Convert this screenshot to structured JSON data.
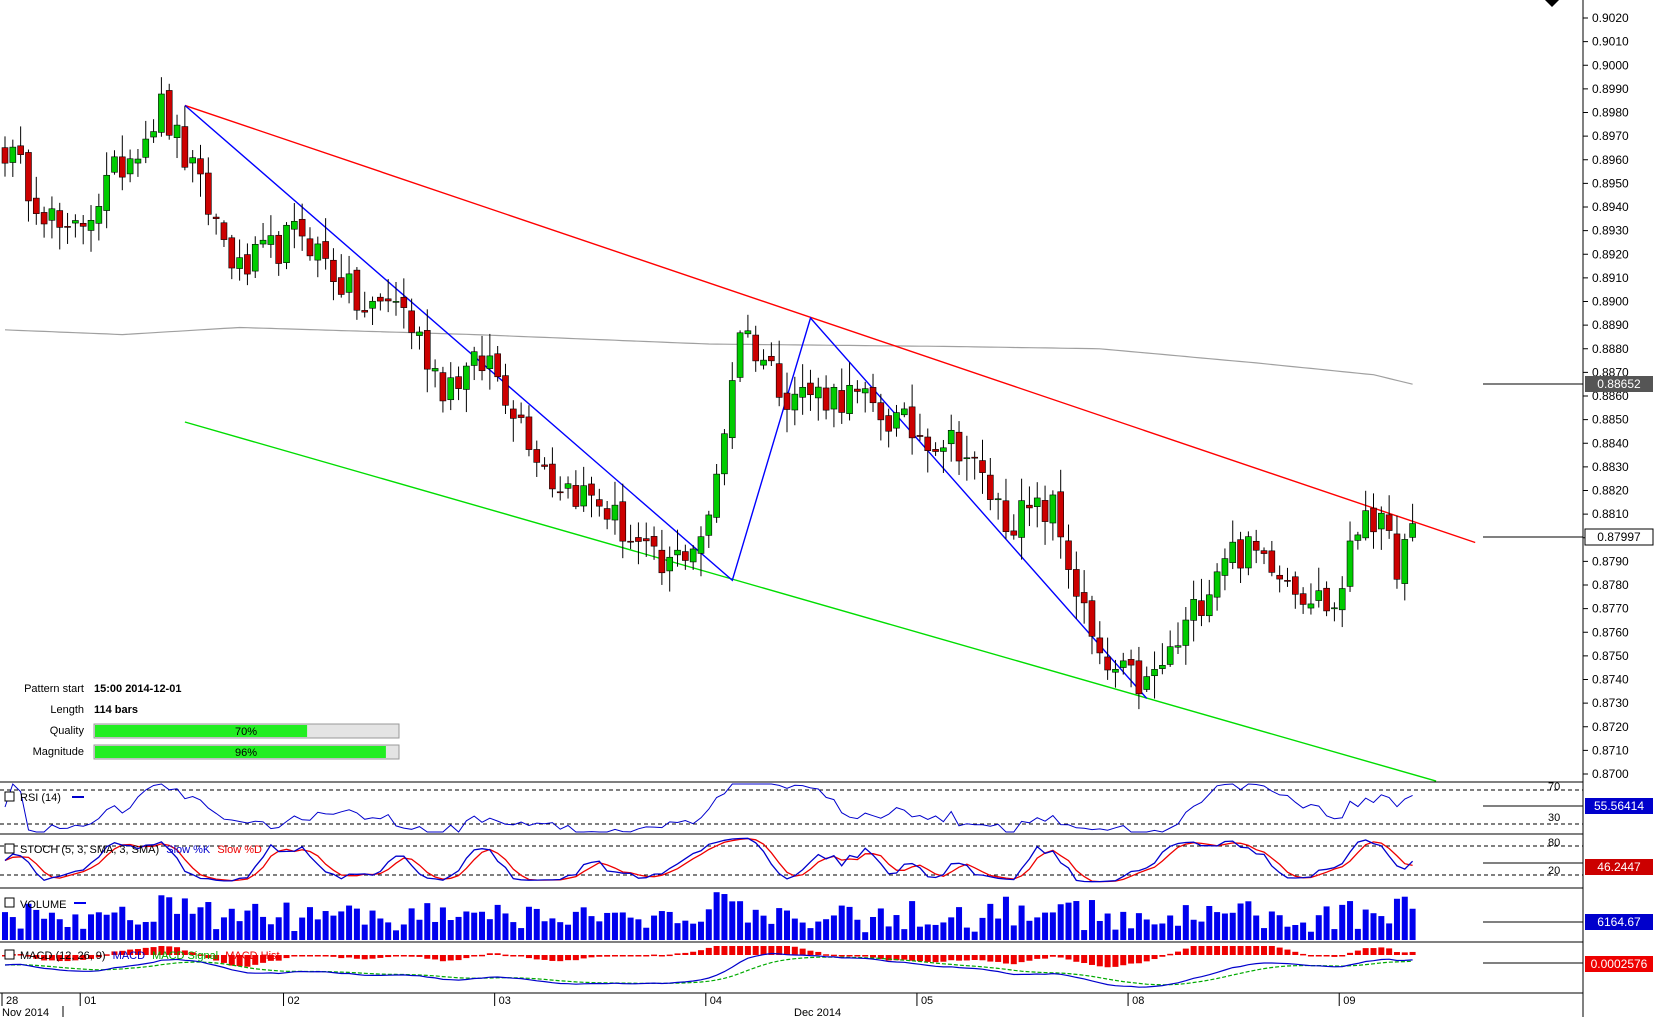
{
  "chart_data": {
    "type": "candlestick",
    "instrument_axis": {
      "y_ticks": [
        "0.9020",
        "0.9010",
        "0.9000",
        "0.8990",
        "0.8980",
        "0.8970",
        "0.8960",
        "0.8950",
        "0.8940",
        "0.8930",
        "0.8920",
        "0.8910",
        "0.8900",
        "0.8890",
        "0.8880",
        "0.8870",
        "0.8860",
        "0.8850",
        "0.8840",
        "0.8830",
        "0.8820",
        "0.8810",
        "0.8800",
        "0.8790",
        "0.8780",
        "0.8770",
        "0.8760",
        "0.8750",
        "0.8740",
        "0.8730",
        "0.8720",
        "0.8710",
        "0.8700"
      ],
      "ylim": [
        0.8697,
        0.9027
      ]
    },
    "x_labels": {
      "days": [
        "28",
        "01",
        "02",
        "03",
        "04",
        "05",
        "08",
        "09"
      ],
      "months": [
        "Nov 2014",
        "Dec 2014"
      ]
    },
    "price_badges": {
      "ma": "0.88652",
      "last": "0.87997"
    },
    "price_anchors": [
      {
        "bar": 0,
        "p": 0.8965
      },
      {
        "bar": 8,
        "p": 0.8925
      },
      {
        "bar": 20,
        "p": 0.8982
      },
      {
        "bar": 30,
        "p": 0.8912
      },
      {
        "bar": 38,
        "p": 0.893
      },
      {
        "bar": 46,
        "p": 0.8895
      },
      {
        "bar": 50,
        "p": 0.8902
      },
      {
        "bar": 56,
        "p": 0.8865
      },
      {
        "bar": 62,
        "p": 0.8875
      },
      {
        "bar": 70,
        "p": 0.8825
      },
      {
        "bar": 76,
        "p": 0.8815
      },
      {
        "bar": 84,
        "p": 0.8785
      },
      {
        "bar": 90,
        "p": 0.8805
      },
      {
        "bar": 94,
        "p": 0.889
      },
      {
        "bar": 100,
        "p": 0.8862
      },
      {
        "bar": 108,
        "p": 0.886
      },
      {
        "bar": 116,
        "p": 0.8845
      },
      {
        "bar": 122,
        "p": 0.884
      },
      {
        "bar": 128,
        "p": 0.8808
      },
      {
        "bar": 134,
        "p": 0.8812
      },
      {
        "bar": 140,
        "p": 0.8745
      },
      {
        "bar": 146,
        "p": 0.8737
      },
      {
        "bar": 150,
        "p": 0.8755
      },
      {
        "bar": 156,
        "p": 0.8795
      },
      {
        "bar": 162,
        "p": 0.8792
      },
      {
        "bar": 166,
        "p": 0.8778
      },
      {
        "bar": 170,
        "p": 0.877
      },
      {
        "bar": 174,
        "p": 0.8815
      },
      {
        "bar": 178,
        "p": 0.879
      },
      {
        "bar": 180,
        "p": 0.88
      }
    ],
    "ma_line": [
      {
        "bar": 0,
        "p": 0.8888
      },
      {
        "bar": 15,
        "p": 0.8886
      },
      {
        "bar": 30,
        "p": 0.8889
      },
      {
        "bar": 60,
        "p": 0.8886
      },
      {
        "bar": 90,
        "p": 0.8882
      },
      {
        "bar": 120,
        "p": 0.8881
      },
      {
        "bar": 140,
        "p": 0.888
      },
      {
        "bar": 160,
        "p": 0.8874
      },
      {
        "bar": 175,
        "p": 0.8869
      },
      {
        "bar": 180,
        "p": 0.8865
      }
    ],
    "pattern_lines": {
      "resistance": [
        {
          "bar": 23,
          "p": 0.8983
        },
        {
          "bar": 188,
          "p": 0.8798
        }
      ],
      "support": [
        {
          "bar": 23,
          "p": 0.8849
        },
        {
          "bar": 183,
          "p": 0.8697
        }
      ],
      "zigzag": [
        {
          "bar": 23,
          "p": 0.8983
        },
        {
          "bar": 93,
          "p": 0.8782
        },
        {
          "bar": 103,
          "p": 0.8893
        },
        {
          "bar": 146,
          "p": 0.8732
        }
      ]
    },
    "pattern_info": {
      "start_label": "Pattern start",
      "start_value": "15:00 2014-12-01",
      "length_label": "Length",
      "length_value": "114 bars",
      "quality_label": "Quality",
      "quality_pct": 70,
      "quality_text": "70%",
      "magnitude_label": "Magnitude",
      "magnitude_pct": 96,
      "magnitude_text": "96%"
    },
    "indicators": {
      "rsi": {
        "title": "RSI (14)",
        "levels": [
          "70",
          "30"
        ],
        "value": "55.56414"
      },
      "stoch": {
        "title_main": "STOCH (5, 3, SMA, 3, SMA)",
        "title_k": "Slow %K",
        "title_d": "Slow %D",
        "levels": [
          "80",
          "20"
        ],
        "value": "46.2447"
      },
      "volume": {
        "title": "VOLUME",
        "value": "6164.67"
      },
      "macd": {
        "title_main": "MACD (12, 26, 9)",
        "title_macd": "MACD",
        "title_signal": "MACD Signal",
        "title_hist": "MACD Hist",
        "value": "0.0002576"
      }
    },
    "colors": {
      "bull": "#00cc00",
      "bear": "#cc0000",
      "resistance": "#ff0000",
      "support": "#00dd00",
      "zigzag": "#0000ff",
      "ma": "#a0a0a0",
      "volume": "#0000ee",
      "badge": "#0000cc"
    }
  }
}
